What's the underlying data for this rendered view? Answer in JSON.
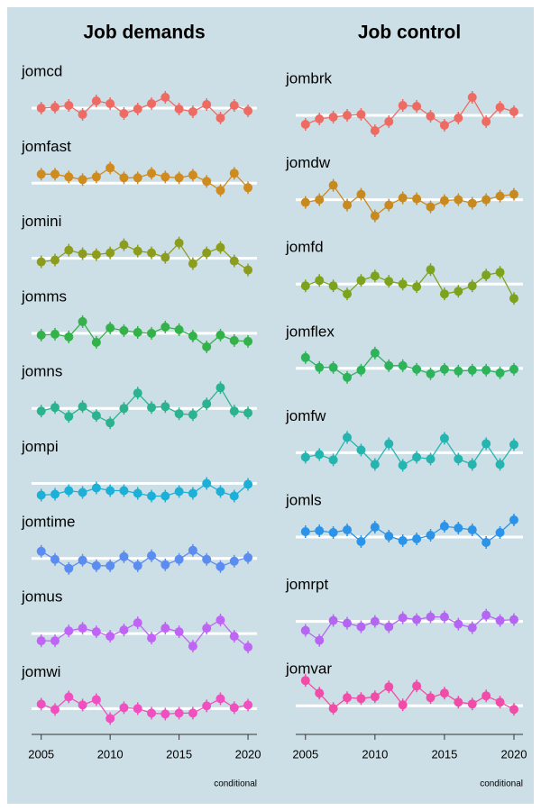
{
  "chart_data": [
    {
      "type": "line",
      "title": "Job demands",
      "caption": "conditional",
      "x": [
        2005,
        2006,
        2007,
        2008,
        2009,
        2010,
        2011,
        2012,
        2013,
        2014,
        2015,
        2016,
        2017,
        2018,
        2019,
        2020
      ],
      "xlim": [
        2004.3,
        2020.65
      ],
      "xticks": [
        2005,
        2010,
        2015,
        2020
      ],
      "ylim": [
        -25,
        30
      ],
      "hline": 0,
      "error": 7,
      "series": [
        {
          "name": "jomcd",
          "color": "#ee6b64",
          "values": [
            0,
            1,
            3,
            -7,
            8,
            5,
            -6,
            -1,
            5,
            12,
            -1,
            -4,
            4,
            -11,
            3,
            -3
          ]
        },
        {
          "name": "jomfast",
          "color": "#cf8b1e",
          "values": [
            10,
            10,
            7,
            4,
            7,
            17,
            6,
            6,
            11,
            7,
            6,
            9,
            2,
            -8,
            11,
            -5
          ]
        },
        {
          "name": "jomini",
          "color": "#8c9d1d",
          "values": [
            -4,
            -2,
            9,
            5,
            4,
            6,
            15,
            8,
            6,
            1,
            17,
            -6,
            6,
            12,
            -3,
            -13
          ]
        },
        {
          "name": "jomms",
          "color": "#33b24a",
          "values": [
            -2,
            -1,
            -4,
            13,
            -10,
            6,
            3,
            1,
            0,
            7,
            4,
            -3,
            -15,
            -2,
            -8,
            -9
          ]
        },
        {
          "name": "jomns",
          "color": "#2ab38e",
          "values": [
            -3,
            1,
            -9,
            2,
            -8,
            -16,
            0,
            17,
            1,
            2,
            -6,
            -7,
            5,
            23,
            -3,
            -5
          ]
        },
        {
          "name": "jompi",
          "color": "#1ab0d8",
          "values": [
            -13,
            -12,
            -8,
            -10,
            -5,
            -8,
            -8,
            -11,
            -14,
            -14,
            -9,
            -11,
            0,
            -9,
            -14,
            -1
          ]
        },
        {
          "name": "jomtime",
          "color": "#5b8cf0",
          "values": [
            8,
            -1,
            -11,
            -2,
            -8,
            -8,
            2,
            -8,
            3,
            -7,
            -1,
            9,
            -1,
            -9,
            -3,
            1
          ]
        },
        {
          "name": "jomus",
          "color": "#c064f5",
          "values": [
            -8,
            -8,
            3,
            6,
            2,
            -3,
            4,
            12,
            -5,
            6,
            2,
            -14,
            6,
            15,
            -3,
            -15
          ]
        },
        {
          "name": "jomwi",
          "color": "#f14fbf",
          "values": [
            5,
            -1,
            13,
            4,
            10,
            -11,
            1,
            0,
            -5,
            -6,
            -5,
            -5,
            3,
            11,
            1,
            4
          ]
        }
      ]
    },
    {
      "type": "line",
      "title": "Job control",
      "caption": "conditional",
      "x": [
        2005,
        2006,
        2007,
        2008,
        2009,
        2010,
        2011,
        2012,
        2013,
        2014,
        2015,
        2016,
        2017,
        2018,
        2019,
        2020
      ],
      "xlim": [
        2004.3,
        2020.65
      ],
      "xticks": [
        2005,
        2010,
        2015,
        2020
      ],
      "ylim": [
        -25,
        32
      ],
      "hline": 0,
      "error": 7,
      "series": [
        {
          "name": "jombrk",
          "color": "#ee6b64",
          "values": [
            -10,
            -4,
            -2,
            0,
            1,
            -17,
            -7,
            11,
            10,
            -1,
            -11,
            -3,
            20,
            -7,
            9,
            4
          ]
        },
        {
          "name": "jomdw",
          "color": "#c8891e",
          "values": [
            -3,
            0,
            16,
            -6,
            6,
            -18,
            -6,
            2,
            1,
            -8,
            -1,
            0,
            -4,
            0,
            4,
            6
          ]
        },
        {
          "name": "jomfd",
          "color": "#7da31d",
          "values": [
            -2,
            4,
            -2,
            -11,
            4,
            9,
            3,
            0,
            -3,
            16,
            -11,
            -8,
            -2,
            10,
            13,
            -16
          ]
        },
        {
          "name": "jomflex",
          "color": "#2db35a",
          "values": [
            12,
            1,
            1,
            -10,
            -2,
            17,
            3,
            3,
            -1,
            -6,
            -1,
            -3,
            -2,
            -2,
            -5,
            -1
          ]
        },
        {
          "name": "jomfw",
          "color": "#25b5b0",
          "values": [
            -5,
            -2,
            -8,
            17,
            3,
            -13,
            10,
            -14,
            -5,
            -7,
            16,
            -7,
            -13,
            10,
            -13,
            9
          ]
        },
        {
          "name": "jomls",
          "color": "#2b93e8",
          "values": [
            6,
            7,
            5,
            8,
            -5,
            11,
            1,
            -4,
            -2,
            2,
            12,
            10,
            8,
            -6,
            5,
            19
          ]
        },
        {
          "name": "jomrpt",
          "color": "#b466f2",
          "values": [
            -10,
            -21,
            1,
            -2,
            -6,
            0,
            -6,
            4,
            2,
            5,
            5,
            -3,
            -7,
            7,
            1,
            2
          ]
        },
        {
          "name": "jomvar",
          "color": "#f04ca8",
          "values": [
            28,
            14,
            -3,
            9,
            8,
            10,
            21,
            1,
            22,
            9,
            14,
            4,
            2,
            11,
            4,
            -4
          ]
        }
      ]
    }
  ]
}
